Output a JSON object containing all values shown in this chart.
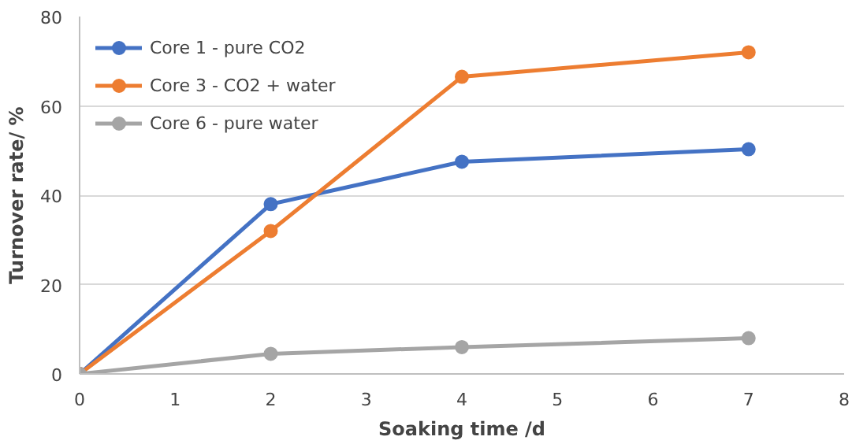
{
  "chart_data": {
    "type": "line",
    "xlabel": "Soaking time /d",
    "ylabel": "Turnover rate/ %",
    "x": [
      0,
      2,
      4,
      7
    ],
    "series": [
      {
        "name": "Core 1 - pure CO2",
        "color": "#4472c4",
        "values": [
          0,
          38,
          47.5,
          50.3
        ]
      },
      {
        "name": "Core 3 - CO2 + water",
        "color": "#ed7d31",
        "values": [
          0,
          32,
          66.5,
          72
        ]
      },
      {
        "name": "Core 6 - pure water",
        "color": "#a5a5a5",
        "values": [
          0,
          4.5,
          6,
          8
        ]
      }
    ],
    "xlim": [
      0,
      8
    ],
    "xticks": [
      0,
      1,
      2,
      3,
      4,
      5,
      6,
      7,
      8
    ],
    "ylim": [
      0,
      80
    ],
    "yticks": [
      0,
      20,
      40,
      60,
      80
    ],
    "grid": "y",
    "legend": "top left",
    "marker": "circle",
    "line_style": "solid"
  }
}
